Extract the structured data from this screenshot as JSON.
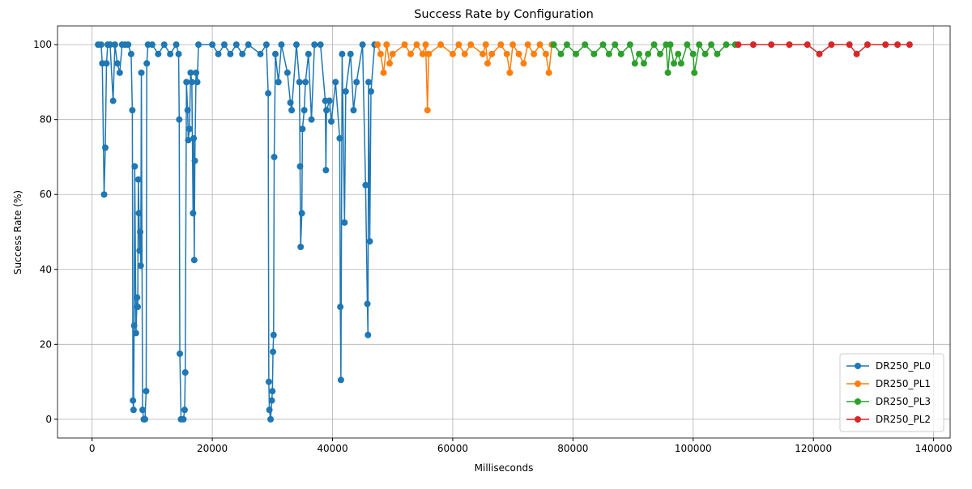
{
  "chart_data": {
    "type": "line",
    "title": "Success Rate by Configuration",
    "x_label": "Milliseconds",
    "y_label": "Success Rate (%)",
    "xlim": [
      -5750,
      142750
    ],
    "ylim": [
      -5,
      105
    ],
    "xticks": [
      0,
      20000,
      40000,
      60000,
      80000,
      100000,
      120000,
      140000
    ],
    "yticks": [
      0,
      20,
      40,
      60,
      80,
      100
    ],
    "grid": true,
    "legend": "lower right",
    "series": [
      {
        "name": "DR250_PL0",
        "color": "#1f77b4",
        "x": [
          1000,
          1500,
          1700,
          2000,
          2200,
          2400,
          2600,
          3000,
          3500,
          3800,
          4200,
          4600,
          5000,
          5500,
          6000,
          6500,
          6700,
          6800,
          6900,
          7000,
          7100,
          7300,
          7500,
          7600,
          7700,
          7800,
          7900,
          8000,
          8100,
          8200,
          8400,
          8600,
          8800,
          9000,
          9100,
          9300,
          10000,
          11000,
          12000,
          13000,
          14000,
          14400,
          14500,
          14600,
          14800,
          15200,
          15400,
          15500,
          15700,
          15900,
          16000,
          16200,
          16400,
          16600,
          16800,
          16900,
          17000,
          17100,
          17300,
          17500,
          17700,
          20000,
          21000,
          22000,
          23000,
          24000,
          25000,
          26000,
          28000,
          29000,
          29300,
          29400,
          29500,
          29700,
          29900,
          30000,
          30100,
          30200,
          30300,
          30500,
          31000,
          31500,
          32500,
          33000,
          33200,
          34000,
          34500,
          34600,
          34700,
          34900,
          35000,
          35300,
          35500,
          36000,
          36500,
          37000,
          38000,
          38800,
          38900,
          39000,
          39500,
          39800,
          40500,
          41200,
          41300,
          41400,
          41600,
          42000,
          42200,
          43000,
          43500,
          44000,
          45000,
          45500,
          45800,
          45900,
          46000,
          46200,
          46400,
          47000
        ],
        "values": [
          100,
          100,
          95,
          60,
          72.5,
          95,
          100,
          100,
          85,
          100,
          95,
          92.5,
          100,
          100,
          100,
          97.5,
          82.5,
          5,
          2.5,
          25,
          67.5,
          23,
          32.5,
          30,
          64,
          55,
          45,
          50,
          41,
          92.5,
          2.5,
          0,
          0,
          7.5,
          95,
          100,
          100,
          97.5,
          100,
          97.5,
          100,
          97.5,
          80,
          17.5,
          0,
          0,
          2.5,
          12.5,
          90,
          82.5,
          74.5,
          77.5,
          92.5,
          90,
          55,
          75,
          42.5,
          69,
          92.5,
          90,
          100,
          100,
          97.5,
          100,
          97.5,
          100,
          97.5,
          100,
          97.5,
          100,
          87,
          10,
          2.5,
          0,
          5,
          7.5,
          18,
          22.5,
          70,
          97.5,
          90,
          100,
          92.5,
          84.5,
          82.5,
          100,
          90,
          67.5,
          46,
          55,
          77.5,
          82.5,
          90,
          97.5,
          80,
          100,
          100,
          85,
          66.5,
          82.5,
          85,
          79.5,
          90,
          75,
          30,
          10.5,
          97.5,
          52.5,
          87.5,
          97.5,
          82.5,
          90,
          100,
          62.5,
          30.8,
          22.5,
          90,
          47.5,
          87.5,
          100
        ]
      },
      {
        "name": "DR250_PL1",
        "color": "#ff7f0e",
        "x": [
          47500,
          48000,
          48500,
          49000,
          49500,
          50000,
          52000,
          53000,
          54000,
          55000,
          55500,
          55800,
          56000,
          58000,
          60000,
          61000,
          62000,
          63000,
          65000,
          65500,
          65800,
          66500,
          68000,
          69000,
          69500,
          70000,
          71000,
          71800,
          72500,
          73500,
          74500,
          75500,
          76000,
          76500
        ],
        "values": [
          100,
          97.5,
          92.5,
          100,
          95,
          97.5,
          100,
          97.5,
          100,
          97.5,
          100,
          82.5,
          97.5,
          100,
          97.5,
          100,
          97.5,
          100,
          97.5,
          100,
          95,
          97.5,
          100,
          97.5,
          92.5,
          100,
          97.5,
          95,
          100,
          97.5,
          100,
          97.5,
          92.5,
          100
        ]
      },
      {
        "name": "DR250_PL3",
        "color": "#2ca02c",
        "x": [
          76800,
          78000,
          79000,
          80500,
          82000,
          83500,
          85000,
          86000,
          87000,
          88000,
          89500,
          90300,
          91000,
          91800,
          92500,
          93500,
          94500,
          95500,
          95800,
          96200,
          96800,
          97500,
          98000,
          99000,
          100000,
          100200,
          101000,
          102000,
          103000,
          104000,
          105500,
          107000
        ],
        "values": [
          100,
          97.5,
          100,
          97.5,
          100,
          97.5,
          100,
          97.5,
          100,
          97.5,
          100,
          95,
          97.5,
          95,
          97.5,
          100,
          97.5,
          100,
          92.5,
          100,
          95,
          97.5,
          95,
          100,
          97.5,
          92.5,
          100,
          97.5,
          100,
          97.5,
          100,
          100
        ]
      },
      {
        "name": "DR250_PL2",
        "color": "#d62728",
        "x": [
          107500,
          110000,
          113000,
          116000,
          119000,
          121000,
          123000,
          126000,
          127200,
          129000,
          132000,
          134000,
          136000
        ],
        "values": [
          100,
          100,
          100,
          100,
          100,
          97.5,
          100,
          100,
          97.5,
          100,
          100,
          100,
          100
        ]
      }
    ]
  }
}
